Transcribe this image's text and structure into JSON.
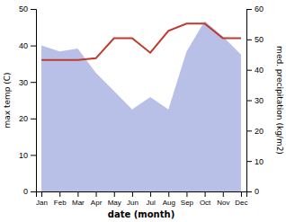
{
  "chart_data": {
    "type": "line",
    "categories": [
      "Jan",
      "Feb",
      "Mar",
      "Apr",
      "May",
      "Jun",
      "Jul",
      "Aug",
      "Sep",
      "Oct",
      "Nov",
      "Dec"
    ],
    "xlabel": "date (month)",
    "ylabel": "max temp (C)",
    "y2label": "med. precipitation (kg/m2)",
    "ylim": [
      0,
      50
    ],
    "yticks": [
      0,
      10,
      20,
      30,
      40,
      50
    ],
    "y2lim": [
      0,
      60
    ],
    "y2ticks": [
      0,
      10,
      20,
      30,
      40,
      50,
      60
    ],
    "series": [
      {
        "type": "area",
        "axis": "y2",
        "color": "#b8c0e8",
        "values": [
          48,
          46,
          47,
          39,
          33,
          27,
          31,
          27,
          46,
          56,
          51,
          45
        ]
      },
      {
        "type": "line",
        "color": "#c0392b",
        "values": [
          36,
          36,
          36,
          36.5,
          42,
          42,
          38,
          44,
          46,
          46,
          42,
          42
        ]
      }
    ]
  }
}
